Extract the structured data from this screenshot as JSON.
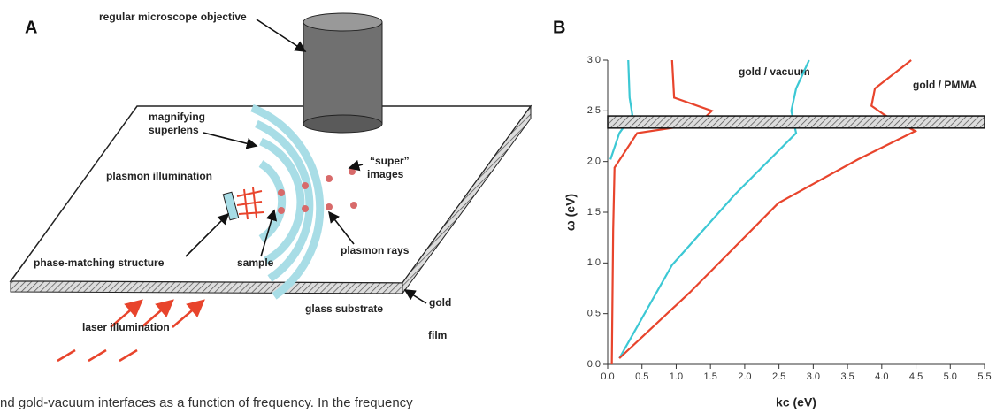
{
  "panel_a": {
    "label": "A",
    "labels": [
      "regular microscope objective",
      "magnifying",
      "superlens",
      "“super”",
      "images",
      "plasmon illumination",
      "phase-matching structure",
      "sample",
      "plasmon rays",
      "gold",
      "glass substrate",
      "laser illumination",
      "film"
    ]
  },
  "caption": "nd gold-vacuum interfaces as a function of frequency. In the frequency",
  "chart_data": {
    "type": "line",
    "panel_label": "B",
    "xlabel": "kc (eV)",
    "ylabel": "ω (eV)",
    "xlim": [
      0,
      5.5
    ],
    "ylim": [
      0,
      3.0
    ],
    "xticks": [
      {
        "value": 0,
        "label": "0.0"
      },
      0.5,
      {
        "value": 1,
        "label": "1.0"
      },
      1.5,
      {
        "value": 2,
        "label": "2.0"
      },
      2.5,
      {
        "value": 3,
        "label": "3.0"
      },
      3.5,
      {
        "value": 4,
        "label": "4.0"
      },
      4.5,
      {
        "value": 5,
        "label": "5.0"
      },
      5.5
    ],
    "yticks": [
      {
        "value": 0,
        "label": "0.0"
      },
      0.5,
      {
        "value": 1,
        "label": "1.0"
      },
      1.5,
      {
        "value": 2,
        "label": "2.0"
      },
      2.5,
      {
        "value": 3,
        "label": "3.0"
      }
    ],
    "highlight_band": [
      2.33,
      2.45
    ],
    "annotations": [
      "gold / vacuum",
      "gold / PMMA"
    ],
    "series": [
      {
        "color": "#3cc8d4",
        "x": [
          0.3,
          0.32,
          0.36,
          0.17,
          0.04
        ],
        "values": [
          3.0,
          2.63,
          2.46,
          2.28,
          2.02
        ]
      },
      {
        "color": "#3cc8d4",
        "x": [
          0.17,
          0.94,
          1.85,
          2.75,
          2.68,
          2.75,
          2.94
        ],
        "values": [
          0.06,
          0.98,
          1.67,
          2.28,
          2.5,
          2.72,
          3.0
        ]
      },
      {
        "color": "#e8442c",
        "x": [
          0.94,
          0.97,
          1.52,
          1.32,
          0.43,
          0.1,
          0.08,
          0.06
        ],
        "values": [
          3.0,
          2.63,
          2.5,
          2.37,
          2.28,
          1.94,
          1.33,
          0.0
        ]
      },
      {
        "color": "#e8442c",
        "x": [
          0.17,
          1.2,
          2.49,
          3.65,
          4.49,
          4.04,
          3.85,
          3.9,
          4.43
        ],
        "values": [
          0.06,
          0.71,
          1.59,
          2.02,
          2.3,
          2.46,
          2.55,
          2.72,
          3.0
        ]
      }
    ]
  }
}
